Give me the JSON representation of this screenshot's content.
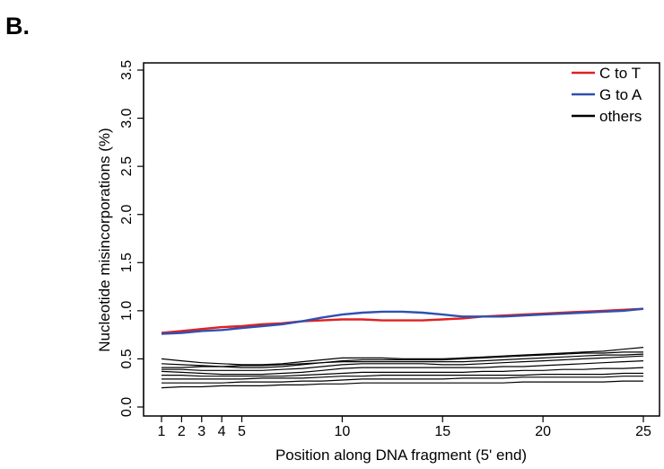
{
  "panel_label": "B.",
  "chart_data": {
    "type": "line",
    "title": "",
    "xlabel": "Position along DNA fragment (5' end)",
    "ylabel": "Nucleotide misincorporations (%)",
    "xlim": [
      1,
      25
    ],
    "ylim": [
      0.0,
      3.5
    ],
    "xticks": [
      1,
      2,
      3,
      4,
      5,
      10,
      15,
      20,
      25
    ],
    "yticks": [
      "0.0",
      "0.5",
      "1.0",
      "1.5",
      "2.0",
      "2.5",
      "3.0",
      "3.5"
    ],
    "grid": false,
    "legend_position": "top-right",
    "x": [
      1,
      2,
      3,
      4,
      5,
      6,
      7,
      8,
      9,
      10,
      11,
      12,
      13,
      14,
      15,
      16,
      17,
      18,
      19,
      20,
      21,
      22,
      23,
      24,
      25
    ],
    "series": [
      {
        "name": "C to T",
        "color": "#e02020",
        "values": [
          0.77,
          0.79,
          0.81,
          0.83,
          0.84,
          0.86,
          0.87,
          0.89,
          0.9,
          0.91,
          0.91,
          0.9,
          0.9,
          0.9,
          0.91,
          0.92,
          0.94,
          0.95,
          0.96,
          0.97,
          0.98,
          0.99,
          1.0,
          1.01,
          1.02
        ]
      },
      {
        "name": "G to A",
        "color": "#3050b0",
        "values": [
          0.76,
          0.77,
          0.79,
          0.8,
          0.82,
          0.84,
          0.86,
          0.89,
          0.93,
          0.96,
          0.98,
          0.99,
          0.99,
          0.98,
          0.96,
          0.94,
          0.94,
          0.94,
          0.95,
          0.96,
          0.97,
          0.98,
          0.99,
          1.0,
          1.02
        ]
      },
      {
        "name": "others",
        "color": "#000000",
        "values": [
          0.5,
          0.48,
          0.46,
          0.45,
          0.44,
          0.44,
          0.45,
          0.47,
          0.49,
          0.51,
          0.51,
          0.51,
          0.5,
          0.5,
          0.5,
          0.51,
          0.52,
          0.53,
          0.54,
          0.55,
          0.56,
          0.57,
          0.58,
          0.6,
          0.62
        ]
      },
      {
        "name": "",
        "color": "#000000",
        "values": [
          0.45,
          0.44,
          0.43,
          0.42,
          0.41,
          0.41,
          0.42,
          0.44,
          0.46,
          0.48,
          0.49,
          0.49,
          0.49,
          0.49,
          0.49,
          0.5,
          0.51,
          0.52,
          0.53,
          0.54,
          0.55,
          0.56,
          0.56,
          0.57,
          0.57
        ]
      },
      {
        "name": "",
        "color": "#000000",
        "values": [
          0.41,
          0.41,
          0.42,
          0.42,
          0.43,
          0.43,
          0.44,
          0.45,
          0.46,
          0.47,
          0.47,
          0.47,
          0.47,
          0.47,
          0.47,
          0.47,
          0.48,
          0.49,
          0.5,
          0.51,
          0.52,
          0.53,
          0.54,
          0.54,
          0.55
        ]
      },
      {
        "name": "",
        "color": "#000000",
        "values": [
          0.39,
          0.39,
          0.38,
          0.38,
          0.38,
          0.38,
          0.39,
          0.4,
          0.42,
          0.44,
          0.45,
          0.45,
          0.45,
          0.45,
          0.44,
          0.44,
          0.45,
          0.46,
          0.47,
          0.48,
          0.49,
          0.5,
          0.51,
          0.52,
          0.53
        ]
      },
      {
        "name": "",
        "color": "#000000",
        "values": [
          0.37,
          0.36,
          0.35,
          0.34,
          0.34,
          0.34,
          0.35,
          0.36,
          0.38,
          0.4,
          0.41,
          0.41,
          0.41,
          0.41,
          0.41,
          0.41,
          0.41,
          0.42,
          0.42,
          0.43,
          0.44,
          0.45,
          0.46,
          0.47,
          0.48
        ]
      },
      {
        "name": "",
        "color": "#000000",
        "values": [
          0.33,
          0.33,
          0.32,
          0.32,
          0.32,
          0.32,
          0.32,
          0.33,
          0.34,
          0.35,
          0.36,
          0.36,
          0.36,
          0.36,
          0.36,
          0.36,
          0.37,
          0.37,
          0.38,
          0.38,
          0.39,
          0.39,
          0.4,
          0.4,
          0.41
        ]
      },
      {
        "name": "",
        "color": "#000000",
        "values": [
          0.29,
          0.29,
          0.29,
          0.29,
          0.29,
          0.3,
          0.3,
          0.3,
          0.31,
          0.32,
          0.32,
          0.33,
          0.33,
          0.33,
          0.33,
          0.33,
          0.33,
          0.33,
          0.33,
          0.34,
          0.34,
          0.34,
          0.34,
          0.35,
          0.35
        ]
      },
      {
        "name": "",
        "color": "#000000",
        "values": [
          0.25,
          0.25,
          0.25,
          0.25,
          0.26,
          0.26,
          0.26,
          0.27,
          0.27,
          0.28,
          0.29,
          0.29,
          0.29,
          0.29,
          0.29,
          0.3,
          0.3,
          0.3,
          0.31,
          0.31,
          0.31,
          0.31,
          0.31,
          0.32,
          0.32
        ]
      },
      {
        "name": "",
        "color": "#000000",
        "values": [
          0.2,
          0.21,
          0.21,
          0.22,
          0.22,
          0.22,
          0.23,
          0.23,
          0.24,
          0.24,
          0.25,
          0.25,
          0.25,
          0.25,
          0.25,
          0.25,
          0.25,
          0.25,
          0.26,
          0.26,
          0.26,
          0.26,
          0.26,
          0.27,
          0.27
        ]
      }
    ]
  }
}
